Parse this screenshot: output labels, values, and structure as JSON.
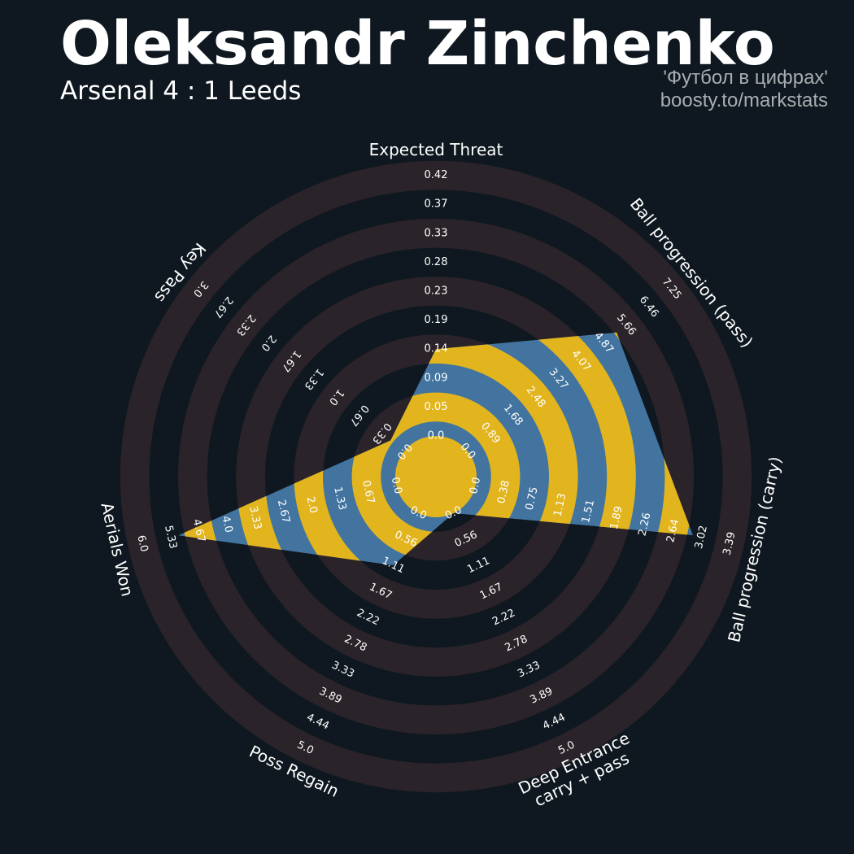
{
  "header": {
    "player": "Oleksandr Zinchenko",
    "match": "Arsenal 4 : 1 Leeds",
    "credit_line1": "'Футбол в цифрах'",
    "credit_line2": "boosty.to/markstats"
  },
  "colors": {
    "background": "#0f1820",
    "ring_band": "#2a2329",
    "polygon": "#42749f",
    "polygon_band": "#e2b51e",
    "text": "#ffffff"
  },
  "chart_data": {
    "type": "radar",
    "title": "",
    "parameters": [
      {
        "label": "Expected Threat",
        "value": 0.14,
        "range": [
          0.0,
          0.42
        ],
        "ticks": [
          "0.0",
          "0.05",
          "0.09",
          "0.14",
          "0.19",
          "0.23",
          "0.28",
          "0.33",
          "0.37",
          "0.42"
        ]
      },
      {
        "label": "Ball progression (pass)",
        "value": 5.3,
        "range": [
          0.0,
          7.25
        ],
        "ticks": [
          "0.0",
          "0.89",
          "1.68",
          "2.48",
          "3.27",
          "4.07",
          "4.87",
          "5.66",
          "6.46",
          "7.25"
        ]
      },
      {
        "label": "Ball progression (carry)",
        "value": 2.9,
        "range": [
          0.0,
          3.39
        ],
        "ticks": [
          "0.0",
          "0.38",
          "0.75",
          "1.13",
          "1.51",
          "1.89",
          "2.26",
          "2.64",
          "3.02",
          "3.39"
        ]
      },
      {
        "label": "Deep Entrance\ncarry + pass",
        "value": 0.0,
        "range": [
          0.0,
          5.0
        ],
        "ticks": [
          "0.0",
          "0.56",
          "1.11",
          "1.67",
          "2.22",
          "2.78",
          "3.33",
          "3.89",
          "4.44",
          "5.0"
        ]
      },
      {
        "label": "Poss Regain",
        "value": 1.11,
        "range": [
          0.0,
          5.0
        ],
        "ticks": [
          "0.0",
          "0.56",
          "1.11",
          "1.67",
          "2.22",
          "2.78",
          "3.33",
          "3.89",
          "4.44",
          "5.0"
        ]
      },
      {
        "label": "Aerials Won",
        "value": 5.15,
        "range": [
          0.0,
          6.0
        ],
        "ticks": [
          "0.0",
          "0.67",
          "1.33",
          "2.0",
          "2.67",
          "3.33",
          "4.0",
          "4.67",
          "5.33",
          "6.0"
        ]
      },
      {
        "label": "Key Pass",
        "value": 0.2,
        "range": [
          0.0,
          3.0
        ],
        "ticks": [
          "0.0",
          "0.33",
          "0.67",
          "1.0",
          "1.33",
          "1.67",
          "2.0",
          "2.33",
          "2.67",
          "3.0"
        ]
      }
    ]
  }
}
